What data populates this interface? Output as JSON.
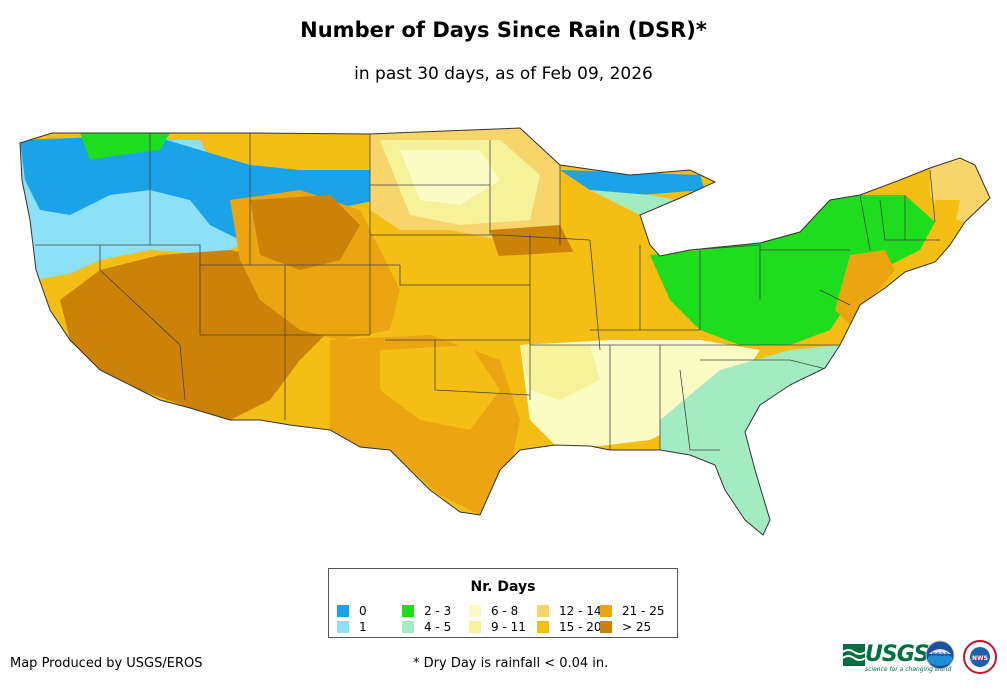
{
  "map": {
    "title": "Number of Days Since Rain (DSR)*",
    "subtitle": "in past 30 days, as of Feb 09, 2026",
    "region": "Contiguous United States"
  },
  "legend": {
    "title": "Nr. Days",
    "items": [
      {
        "label": "0",
        "color": "#1aa3e8"
      },
      {
        "label": "1",
        "color": "#8ce0f7"
      },
      {
        "label": "2 - 3",
        "color": "#1edc1e"
      },
      {
        "label": "4 - 5",
        "color": "#a3ecc2"
      },
      {
        "label": "6 - 8",
        "color": "#fbfcc4"
      },
      {
        "label": "9 - 11",
        "color": "#f6f29a"
      },
      {
        "label": "12 - 14",
        "color": "#f7d56a"
      },
      {
        "label": "15 - 20",
        "color": "#f5be14"
      },
      {
        "label": "21 - 25",
        "color": "#eaa510"
      },
      {
        "label": "> 25",
        "color": "#cc8207"
      }
    ]
  },
  "footer": {
    "credit": "Map Produced by USGS/EROS",
    "note": "* Dry Day is rainfall < 0.04 in."
  },
  "logos": {
    "usgs": "USGS",
    "usgs_tagline": "science for a changing world",
    "noaa": "noaa",
    "nws": "NWS"
  }
}
